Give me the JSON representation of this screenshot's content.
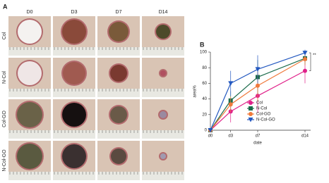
{
  "panel_a": {
    "label": "A",
    "columns": [
      "D0",
      "D3",
      "D7",
      "D14"
    ],
    "rows": [
      "Col",
      "N-Col",
      "Col-GO",
      "N-Col-GO"
    ]
  },
  "chart_data": {
    "type": "line",
    "panel_label": "B",
    "x_label": "date",
    "y_label": "area%",
    "x": [
      0,
      3,
      7,
      14
    ],
    "xlim": [
      0,
      14
    ],
    "xticks": [
      {
        "value": 0,
        "label": "d0"
      },
      {
        "value": 3,
        "label": "d3"
      },
      {
        "value": 7,
        "label": "d7"
      },
      {
        "value": 14,
        "label": "d14"
      }
    ],
    "ylim": [
      0,
      100
    ],
    "yticks": [
      0,
      20,
      40,
      60,
      80,
      100
    ],
    "legend": "lower right",
    "annotation": "**",
    "series": [
      {
        "name": "Col",
        "color": "#e0218a",
        "marker": "circle",
        "values": [
          0,
          24,
          44,
          76
        ],
        "errors": [
          0,
          14,
          22,
          16
        ]
      },
      {
        "name": "N-Col",
        "color": "#1b6b4b",
        "marker": "square",
        "values": [
          0,
          38,
          68,
          92
        ],
        "errors": [
          0,
          12,
          22,
          8
        ]
      },
      {
        "name": "Col-GO",
        "color": "#f07a3c",
        "marker": "circle",
        "values": [
          0,
          33,
          57,
          91
        ],
        "errors": [
          0,
          10,
          20,
          8
        ]
      },
      {
        "name": "N-Col-GO",
        "color": "#2358c0",
        "marker": "triangle-down",
        "values": [
          0,
          60,
          78,
          99
        ],
        "errors": [
          0,
          16,
          18,
          4
        ]
      }
    ]
  }
}
